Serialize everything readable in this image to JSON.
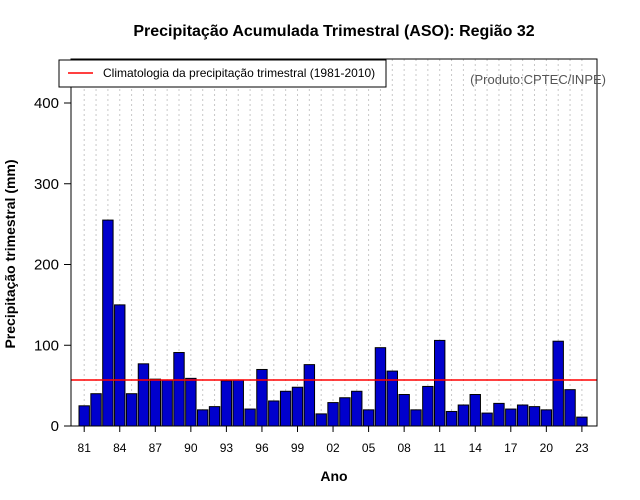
{
  "chart_data": {
    "type": "bar",
    "title": "Precipitação Acumulada Trimestral (ASO): Região 32",
    "xlabel": "Ano",
    "ylabel": "Precipitação trimestral (mm)",
    "credit": "(Produto:CPTEC/INPE)",
    "ylim": [
      0,
      450
    ],
    "yticks": [
      0,
      100,
      200,
      300,
      400
    ],
    "years": [
      1981,
      1982,
      1983,
      1984,
      1985,
      1986,
      1987,
      1988,
      1989,
      1990,
      1991,
      1992,
      1993,
      1994,
      1995,
      1996,
      1997,
      1998,
      1999,
      2000,
      2001,
      2002,
      2003,
      2004,
      2005,
      2006,
      2007,
      2008,
      2009,
      2010,
      2011,
      2012,
      2013,
      2014,
      2015,
      2016,
      2017,
      2018,
      2019,
      2020,
      2021,
      2022,
      2023
    ],
    "xtick_labels": [
      "81",
      "84",
      "87",
      "90",
      "93",
      "96",
      "99",
      "02",
      "05",
      "08",
      "11",
      "14",
      "17",
      "20",
      "23"
    ],
    "xtick_years": [
      1981,
      1984,
      1987,
      1990,
      1993,
      1996,
      1999,
      2002,
      2005,
      2008,
      2011,
      2014,
      2017,
      2020,
      2023
    ],
    "values": [
      25,
      40,
      255,
      150,
      40,
      77,
      58,
      57,
      91,
      59,
      20,
      24,
      56,
      57,
      21,
      70,
      31,
      43,
      48,
      76,
      15,
      29,
      35,
      43,
      20,
      97,
      68,
      39,
      20,
      49,
      106,
      18,
      26,
      39,
      16,
      28,
      21,
      26,
      24,
      20,
      105,
      45,
      11
    ],
    "bar_color": "#0000cd",
    "legend": {
      "label": "Climatologia da precipitação trimestral (1981-2010)",
      "color": "#ff0000",
      "value": 57,
      "placement": "top-left"
    },
    "grid": "vertical dotted"
  }
}
